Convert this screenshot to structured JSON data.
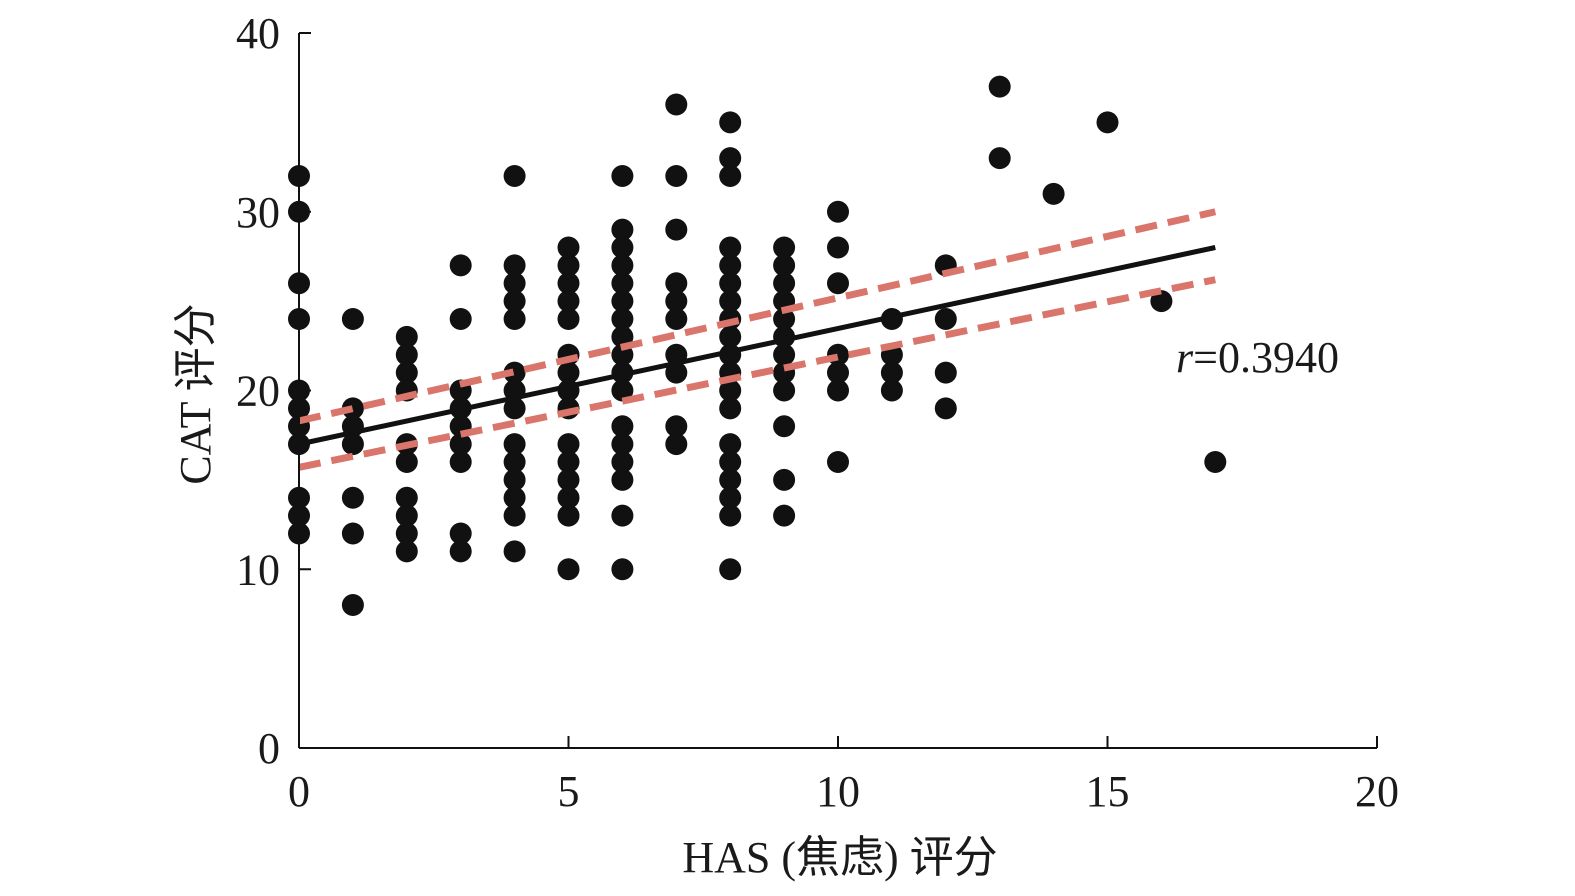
{
  "chart_data": {
    "type": "scatter",
    "title": "",
    "xlabel": "HAS (焦虑) 评分",
    "ylabel": "CAT 评分",
    "xlim": [
      0,
      20
    ],
    "ylim": [
      0,
      40
    ],
    "xticks": [
      "0",
      "5",
      "10",
      "15",
      "20"
    ],
    "yticks": [
      "0",
      "10",
      "20",
      "30",
      "40"
    ],
    "grid": false,
    "annotation": {
      "prefix": "r",
      "value": "=0.3940"
    },
    "points": [
      [
        0,
        32
      ],
      [
        0,
        30
      ],
      [
        0,
        26
      ],
      [
        0,
        24
      ],
      [
        0,
        20
      ],
      [
        0,
        19
      ],
      [
        0,
        18
      ],
      [
        0,
        17
      ],
      [
        0,
        14
      ],
      [
        0,
        13
      ],
      [
        0,
        12
      ],
      [
        1,
        24
      ],
      [
        1,
        19
      ],
      [
        1,
        18
      ],
      [
        1,
        17
      ],
      [
        1,
        14
      ],
      [
        1,
        12
      ],
      [
        1,
        8
      ],
      [
        2,
        23
      ],
      [
        2,
        22
      ],
      [
        2,
        21
      ],
      [
        2,
        20
      ],
      [
        2,
        17
      ],
      [
        2,
        16
      ],
      [
        2,
        14
      ],
      [
        2,
        13
      ],
      [
        2,
        12
      ],
      [
        2,
        11
      ],
      [
        3,
        27
      ],
      [
        3,
        24
      ],
      [
        3,
        20
      ],
      [
        3,
        19
      ],
      [
        3,
        18
      ],
      [
        3,
        17
      ],
      [
        3,
        16
      ],
      [
        3,
        12
      ],
      [
        3,
        11
      ],
      [
        4,
        32
      ],
      [
        4,
        27
      ],
      [
        4,
        26
      ],
      [
        4,
        25
      ],
      [
        4,
        24
      ],
      [
        4,
        21
      ],
      [
        4,
        20
      ],
      [
        4,
        19
      ],
      [
        4,
        17
      ],
      [
        4,
        16
      ],
      [
        4,
        15
      ],
      [
        4,
        14
      ],
      [
        4,
        13
      ],
      [
        4,
        11
      ],
      [
        5,
        28
      ],
      [
        5,
        27
      ],
      [
        5,
        26
      ],
      [
        5,
        25
      ],
      [
        5,
        24
      ],
      [
        5,
        22
      ],
      [
        5,
        21
      ],
      [
        5,
        20
      ],
      [
        5,
        19
      ],
      [
        5,
        17
      ],
      [
        5,
        16
      ],
      [
        5,
        15
      ],
      [
        5,
        14
      ],
      [
        5,
        13
      ],
      [
        5,
        10
      ],
      [
        6,
        32
      ],
      [
        6,
        29
      ],
      [
        6,
        28
      ],
      [
        6,
        27
      ],
      [
        6,
        26
      ],
      [
        6,
        25
      ],
      [
        6,
        24
      ],
      [
        6,
        23
      ],
      [
        6,
        22
      ],
      [
        6,
        21
      ],
      [
        6,
        20
      ],
      [
        6,
        18
      ],
      [
        6,
        17
      ],
      [
        6,
        16
      ],
      [
        6,
        15
      ],
      [
        6,
        13
      ],
      [
        6,
        10
      ],
      [
        7,
        36
      ],
      [
        7,
        32
      ],
      [
        7,
        29
      ],
      [
        7,
        26
      ],
      [
        7,
        25
      ],
      [
        7,
        24
      ],
      [
        7,
        22
      ],
      [
        7,
        21
      ],
      [
        7,
        18
      ],
      [
        7,
        17
      ],
      [
        8,
        35
      ],
      [
        8,
        33
      ],
      [
        8,
        32
      ],
      [
        8,
        28
      ],
      [
        8,
        27
      ],
      [
        8,
        26
      ],
      [
        8,
        25
      ],
      [
        8,
        24
      ],
      [
        8,
        23
      ],
      [
        8,
        22
      ],
      [
        8,
        21
      ],
      [
        8,
        20
      ],
      [
        8,
        19
      ],
      [
        8,
        17
      ],
      [
        8,
        16
      ],
      [
        8,
        15
      ],
      [
        8,
        14
      ],
      [
        8,
        13
      ],
      [
        8,
        10
      ],
      [
        9,
        28
      ],
      [
        9,
        27
      ],
      [
        9,
        26
      ],
      [
        9,
        25
      ],
      [
        9,
        24
      ],
      [
        9,
        23
      ],
      [
        9,
        22
      ],
      [
        9,
        21
      ],
      [
        9,
        20
      ],
      [
        9,
        18
      ],
      [
        9,
        15
      ],
      [
        9,
        13
      ],
      [
        10,
        30
      ],
      [
        10,
        28
      ],
      [
        10,
        26
      ],
      [
        10,
        22
      ],
      [
        10,
        21
      ],
      [
        10,
        20
      ],
      [
        10,
        16
      ],
      [
        11,
        24
      ],
      [
        11,
        22
      ],
      [
        11,
        21
      ],
      [
        11,
        20
      ],
      [
        12,
        27
      ],
      [
        12,
        24
      ],
      [
        12,
        21
      ],
      [
        12,
        19
      ],
      [
        13,
        37
      ],
      [
        13,
        33
      ],
      [
        14,
        31
      ],
      [
        15,
        35
      ],
      [
        16,
        25
      ],
      [
        17,
        16
      ]
    ],
    "fit_line": {
      "x": [
        0,
        17
      ],
      "y": [
        17.0,
        28.0
      ]
    },
    "ci_upper": {
      "x": [
        0,
        17
      ],
      "y": [
        18.3,
        30.0
      ]
    },
    "ci_lower": {
      "x": [
        0,
        17
      ],
      "y": [
        15.7,
        26.2
      ]
    },
    "colors": {
      "points": "#111111",
      "fit": "#111111",
      "ci": "#d9756b",
      "axis": "#111111"
    }
  }
}
